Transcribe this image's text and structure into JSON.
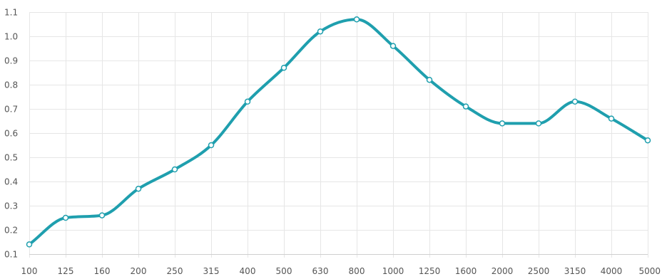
{
  "chart_data": {
    "type": "line",
    "categories": [
      "100",
      "125",
      "160",
      "200",
      "250",
      "315",
      "400",
      "500",
      "630",
      "800",
      "1000",
      "1250",
      "1600",
      "2000",
      "2500",
      "3150",
      "4000",
      "5000"
    ],
    "series": [
      {
        "values": [
          0.14,
          0.25,
          0.26,
          0.37,
          0.45,
          0.55,
          0.73,
          0.87,
          1.02,
          1.07,
          0.96,
          0.82,
          0.71,
          0.64,
          0.64,
          0.73,
          0.66,
          0.57
        ]
      }
    ],
    "y_ticks": [
      "0.1",
      "0.2",
      "0.3",
      "0.4",
      "0.5",
      "0.6",
      "0.7",
      "0.8",
      "0.9",
      "1.0",
      "1.1"
    ],
    "ylim": [
      0.1,
      1.1
    ],
    "grid": true,
    "legend": "none",
    "colors": {
      "line": "#1f9fae",
      "point_fill": "#ffffff",
      "point_stroke": "#1f9fae",
      "grid": "#e6e6e6"
    }
  }
}
